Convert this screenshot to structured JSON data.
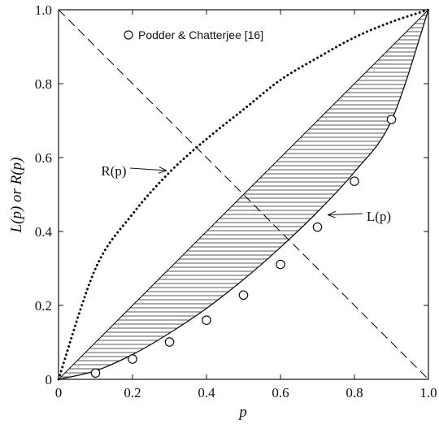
{
  "chart_data": {
    "type": "line",
    "title": "",
    "xlabel": "p",
    "ylabel": "L(p) or R(p)",
    "xlim": [
      0,
      1
    ],
    "ylim": [
      0,
      1
    ],
    "xticks": [
      "0",
      "0.2",
      "0.4",
      "0.6",
      "0.8",
      "1.0"
    ],
    "yticks": [
      "0",
      "0.2",
      "0.4",
      "0.6",
      "0.8",
      "1.0"
    ],
    "grid": false,
    "legend": {
      "placement": "top-left",
      "entries": [
        "Podder & Chatterjee [16]"
      ]
    },
    "series": [
      {
        "name": "L(p)",
        "style": "solid",
        "x": [
          0,
          0.1,
          0.2,
          0.3,
          0.4,
          0.5,
          0.6,
          0.7,
          0.8,
          0.9,
          1.0
        ],
        "y": [
          0,
          0.023,
          0.067,
          0.125,
          0.192,
          0.27,
          0.357,
          0.453,
          0.561,
          0.7,
          1.0
        ]
      },
      {
        "name": "R(p)",
        "style": "dotted",
        "x": [
          0,
          0.1,
          0.2,
          0.3,
          0.4,
          0.5,
          0.6,
          0.7,
          0.8,
          0.9,
          1.0
        ],
        "y": [
          0,
          0.3,
          0.447,
          0.56,
          0.65,
          0.73,
          0.81,
          0.87,
          0.925,
          0.967,
          1.0
        ]
      },
      {
        "style": "solid",
        "x": [
          0,
          1.0
        ],
        "y": [
          0,
          1.0
        ]
      },
      {
        "style": "dashed",
        "x": [
          0,
          1.0
        ],
        "y": [
          1.0,
          0
        ]
      },
      {
        "name": "Podder & Chatterjee [16]",
        "style": "markers",
        "x": [
          0.1,
          0.2,
          0.3,
          0.4,
          0.5,
          0.6,
          0.7,
          0.8,
          0.9
        ],
        "y": [
          0.017,
          0.055,
          0.101,
          0.16,
          0.228,
          0.311,
          0.412,
          0.536,
          0.703
        ]
      }
    ],
    "annotations": [
      {
        "text": "R(p)",
        "points_to": {
          "x": 0.29,
          "y": 0.565
        }
      },
      {
        "text": "L(p)",
        "points_to": {
          "x": 0.73,
          "y": 0.445
        }
      }
    ],
    "shaded_region": {
      "between": [
        "diagonal",
        "L(p)"
      ],
      "pattern": "horizontal-lines"
    }
  }
}
